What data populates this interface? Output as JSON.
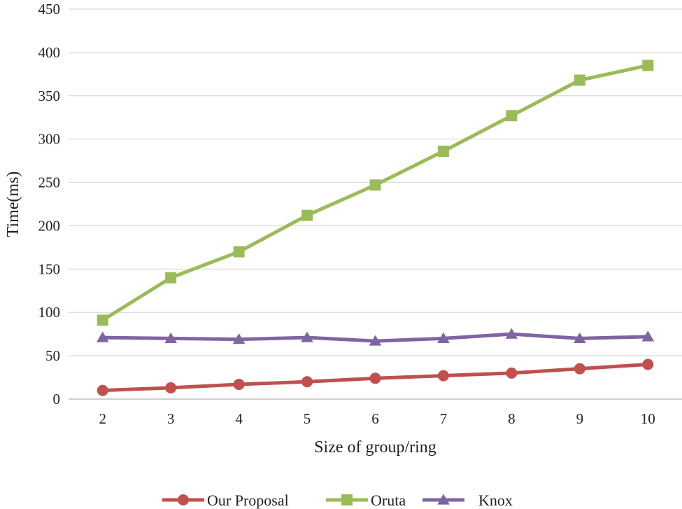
{
  "chart_data": {
    "type": "line",
    "title": "",
    "xlabel": "Size of group/ring",
    "ylabel": "Time(ms)",
    "categories": [
      "2",
      "3",
      "4",
      "5",
      "6",
      "7",
      "8",
      "9",
      "10"
    ],
    "ylim": [
      0,
      450
    ],
    "yticks": [
      0,
      50,
      100,
      150,
      200,
      250,
      300,
      350,
      400,
      450
    ],
    "grid": true,
    "legend": "bottom",
    "series": [
      {
        "name": "Our Proposal",
        "color": "#c0504d",
        "marker": "circle",
        "values": [
          10,
          13,
          17,
          20,
          24,
          27,
          30,
          35,
          40
        ]
      },
      {
        "name": "Oruta",
        "color": "#9bbb59",
        "marker": "square",
        "values": [
          91,
          140,
          170,
          212,
          247,
          286,
          327,
          368,
          385
        ]
      },
      {
        "name": "Knox",
        "color": "#8064a2",
        "marker": "triangle",
        "values": [
          71,
          70,
          69,
          71,
          67,
          70,
          75,
          70,
          72
        ]
      }
    ]
  }
}
